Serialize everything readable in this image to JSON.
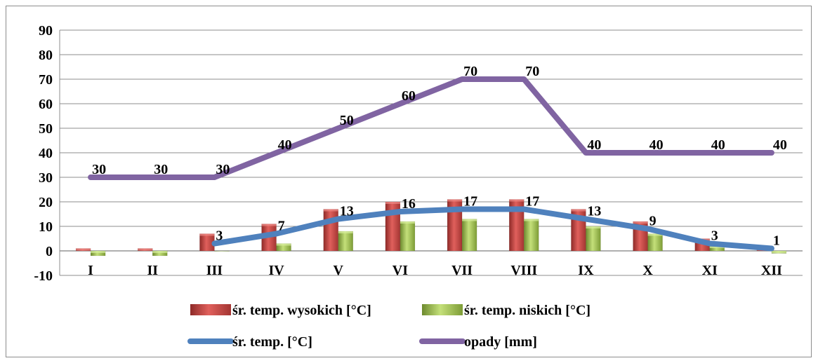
{
  "chart_data": {
    "type": "bar",
    "categories": [
      "I",
      "II",
      "III",
      "IV",
      "V",
      "VI",
      "VII",
      "VIII",
      "IX",
      "X",
      "XI",
      "XII"
    ],
    "ylim": [
      -10,
      90
    ],
    "yticks": [
      -10,
      0,
      10,
      20,
      30,
      40,
      50,
      60,
      70,
      80,
      90
    ],
    "grid": true,
    "legend_position": "bottom",
    "series": [
      {
        "name": "śr. temp. wysokich [°C]",
        "kind": "bar",
        "color": "#c0504d",
        "values": [
          1,
          1,
          7,
          11,
          17,
          20,
          21,
          21,
          17,
          12,
          5,
          1
        ]
      },
      {
        "name": "śr. temp. niskich [°C]",
        "kind": "bar",
        "color": "#9bbb59",
        "values": [
          -2,
          -2,
          0,
          3,
          8,
          12,
          13,
          13,
          10,
          7,
          2,
          -1
        ]
      },
      {
        "name": "śr. temp. [°C]",
        "kind": "line",
        "color": "#4f81bd",
        "values": [
          null,
          null,
          3,
          7,
          13,
          16,
          17,
          17,
          13,
          9,
          3,
          1
        ],
        "labels": [
          "",
          "",
          "3",
          "7",
          "13",
          "16",
          "17",
          "17",
          "13",
          "9",
          "3",
          "1"
        ]
      },
      {
        "name": "opady [mm]",
        "kind": "line",
        "color": "#8064a2",
        "values": [
          30,
          30,
          30,
          40,
          50,
          60,
          70,
          70,
          40,
          40,
          40,
          40
        ],
        "labels": [
          "30",
          "30",
          "30",
          "40",
          "50",
          "60",
          "70",
          "70",
          "40",
          "40",
          "40",
          "40"
        ]
      }
    ]
  }
}
